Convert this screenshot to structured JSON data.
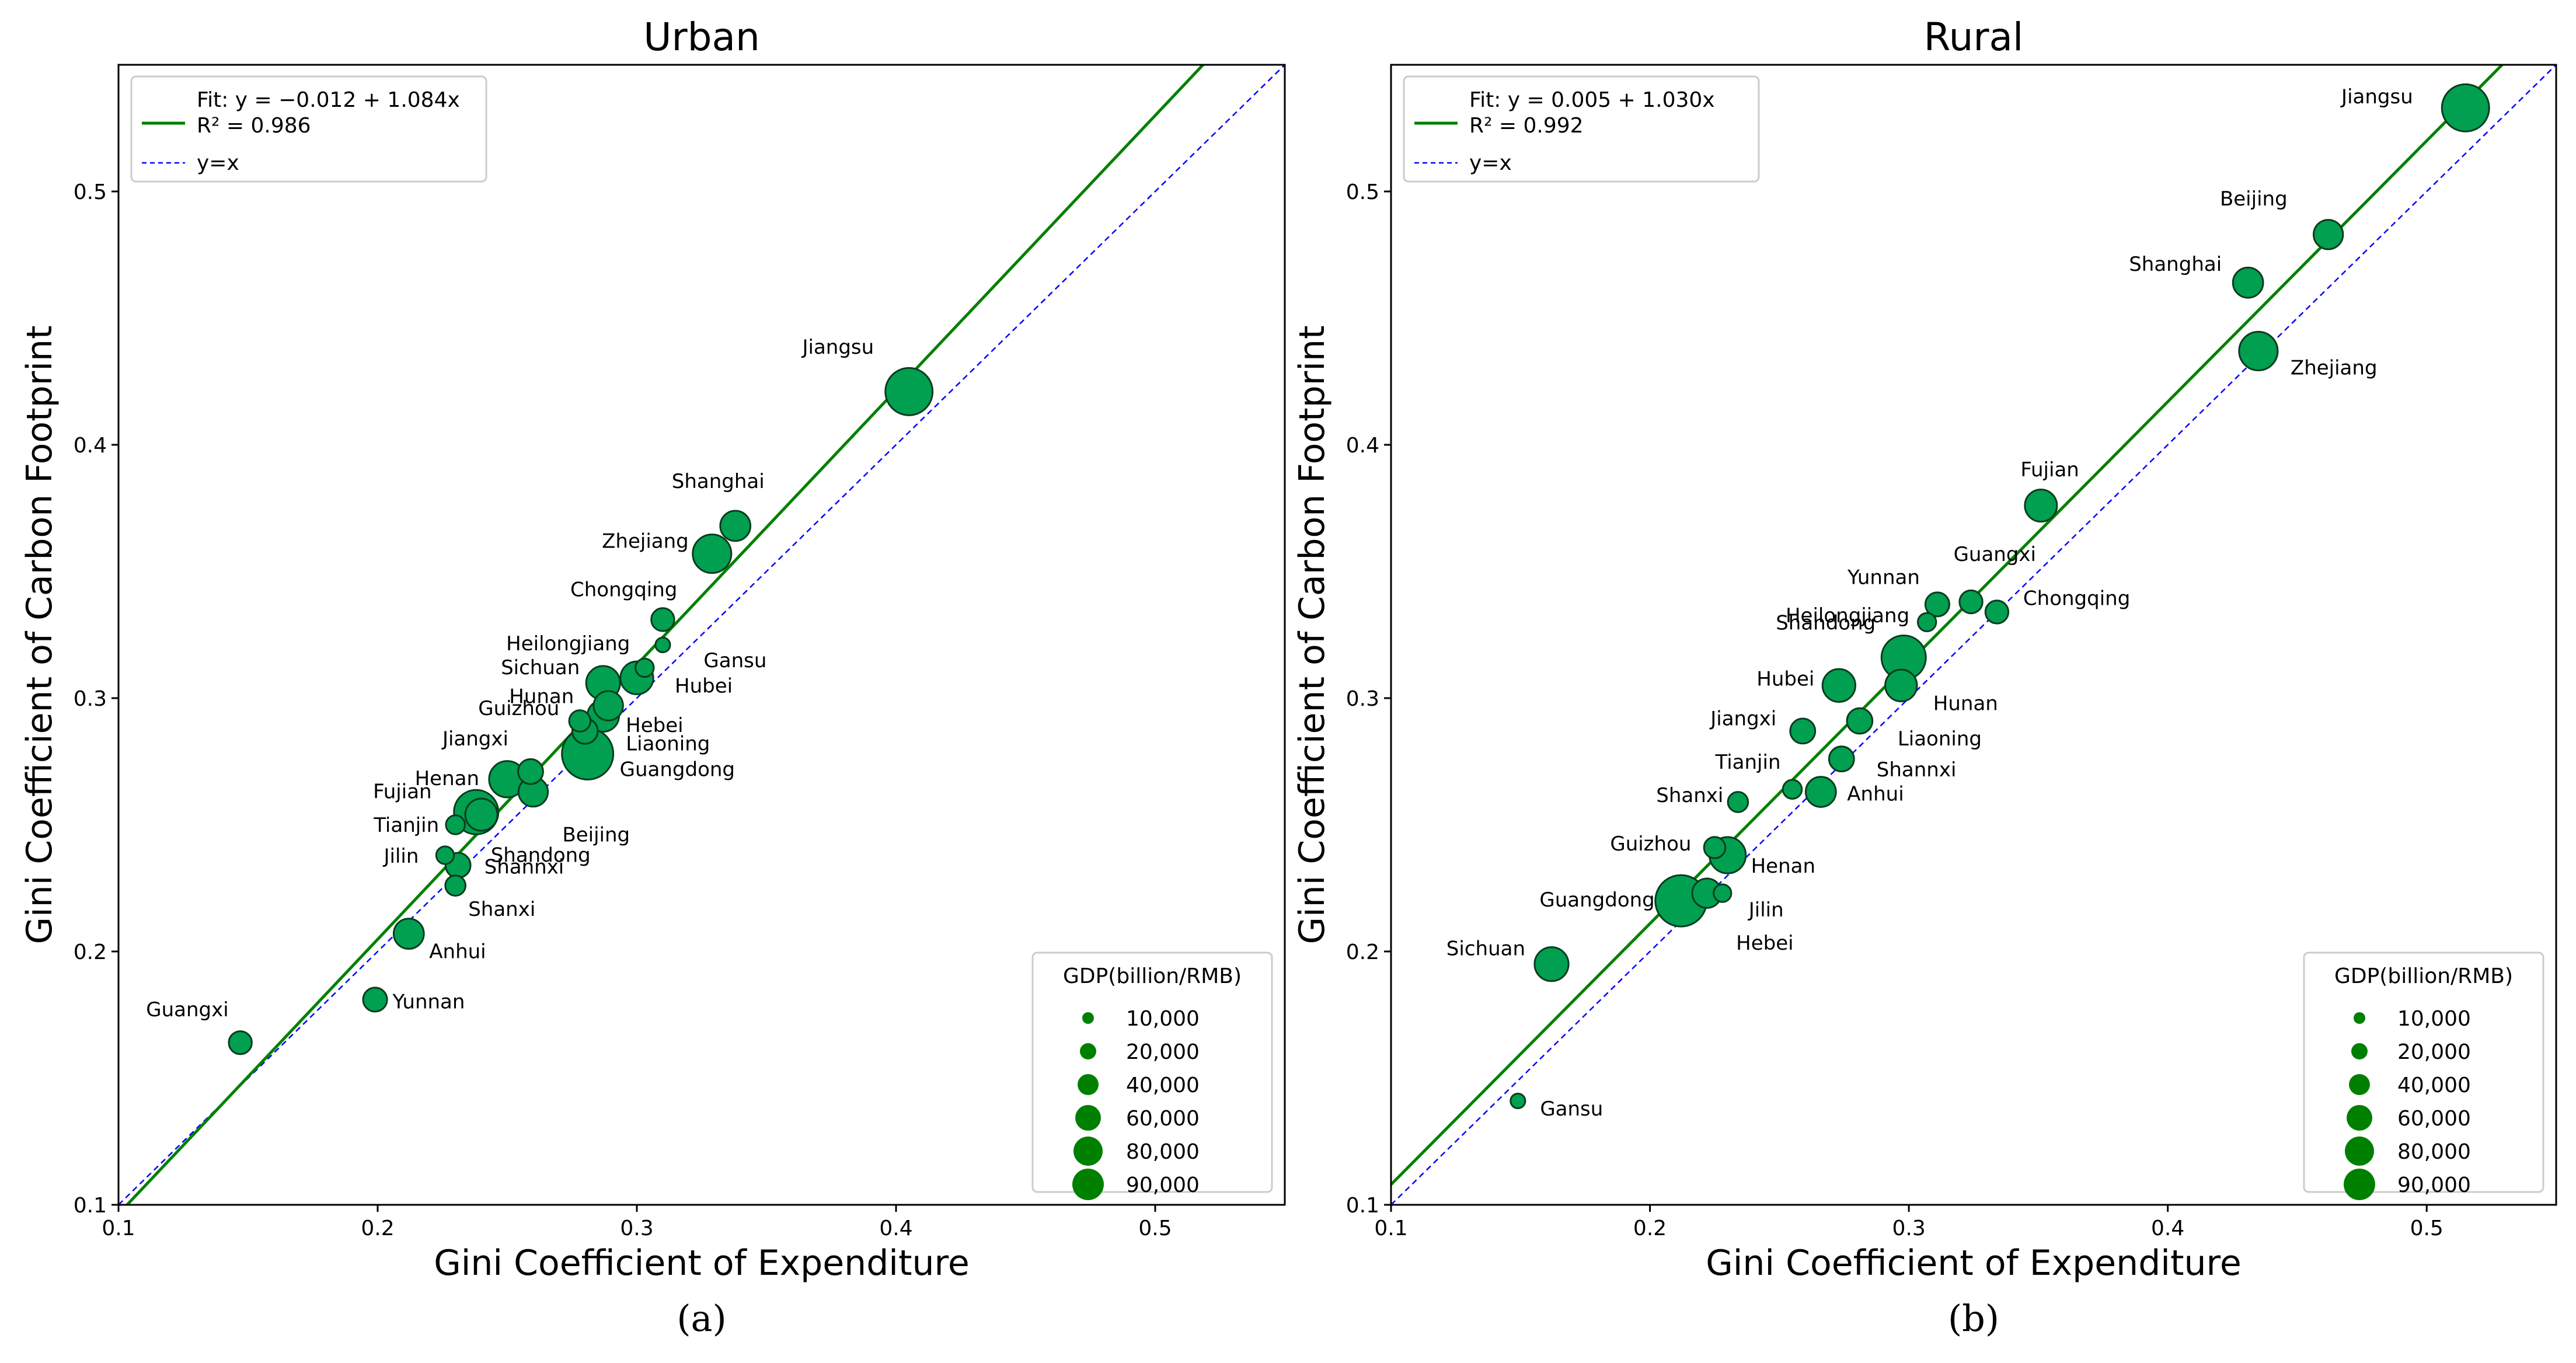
{
  "chart_data": [
    {
      "type": "scatter",
      "panel_label": "(a)",
      "title": "Urban",
      "xlabel": "Gini Coefficient of Expenditure",
      "ylabel": "Gini Coefficient of Carbon Footprint",
      "xlim": [
        0.1,
        0.55
      ],
      "ylim": [
        0.1,
        0.55
      ],
      "xticks": [
        0.1,
        0.2,
        0.3,
        0.4,
        0.5
      ],
      "yticks": [
        0.1,
        0.2,
        0.3,
        0.4,
        0.5
      ],
      "grid": false,
      "fit": {
        "intercept": -0.012,
        "slope": 1.084,
        "label": "Fit: y = −0.012 + 1.084x",
        "r2_label": "R² = 0.986",
        "color": "#008000"
      },
      "identity": {
        "label": "y=x",
        "color": "#0000ff"
      },
      "legend_position": "top-left",
      "points": [
        {
          "name": "Jiangsu",
          "x": 0.405,
          "y": 0.421,
          "gdp": 93000
        },
        {
          "name": "Shanghai",
          "x": 0.338,
          "y": 0.368,
          "gdp": 38000
        },
        {
          "name": "Zhejiang",
          "x": 0.329,
          "y": 0.357,
          "gdp": 62000
        },
        {
          "name": "Chongqing",
          "x": 0.31,
          "y": 0.331,
          "gdp": 22000
        },
        {
          "name": "Gansu",
          "x": 0.31,
          "y": 0.321,
          "gdp": 9000
        },
        {
          "name": "Heilongjiang",
          "x": 0.303,
          "y": 0.312,
          "gdp": 14000
        },
        {
          "name": "Sichuan",
          "x": 0.287,
          "y": 0.306,
          "gdp": 48000
        },
        {
          "name": "Hubei",
          "x": 0.3,
          "y": 0.308,
          "gdp": 45000
        },
        {
          "name": "Hunan",
          "x": 0.287,
          "y": 0.293,
          "gdp": 42000
        },
        {
          "name": "Hebei",
          "x": 0.289,
          "y": 0.297,
          "gdp": 36000
        },
        {
          "name": "Guizhou",
          "x": 0.278,
          "y": 0.291,
          "gdp": 19000
        },
        {
          "name": "Liaoning",
          "x": 0.28,
          "y": 0.287,
          "gdp": 27000
        },
        {
          "name": "Guangdong",
          "x": 0.281,
          "y": 0.278,
          "gdp": 110000
        },
        {
          "name": "Jiangxi",
          "x": 0.259,
          "y": 0.271,
          "gdp": 26000
        },
        {
          "name": "Henan",
          "x": 0.25,
          "y": 0.268,
          "gdp": 55000
        },
        {
          "name": "Beijing",
          "x": 0.26,
          "y": 0.263,
          "gdp": 36000
        },
        {
          "name": "Shandong",
          "x": 0.238,
          "y": 0.255,
          "gdp": 82000
        },
        {
          "name": "Fujian",
          "x": 0.24,
          "y": 0.254,
          "gdp": 43000
        },
        {
          "name": "Tianjin",
          "x": 0.23,
          "y": 0.25,
          "gdp": 15000
        },
        {
          "name": "Jilin",
          "x": 0.226,
          "y": 0.238,
          "gdp": 13000
        },
        {
          "name": "Shannxi",
          "x": 0.231,
          "y": 0.234,
          "gdp": 26000
        },
        {
          "name": "Shanxi",
          "x": 0.23,
          "y": 0.226,
          "gdp": 17000
        },
        {
          "name": "Anhui",
          "x": 0.212,
          "y": 0.207,
          "gdp": 38000
        },
        {
          "name": "Yunnan",
          "x": 0.199,
          "y": 0.181,
          "gdp": 24000
        },
        {
          "name": "Guangxi",
          "x": 0.147,
          "y": 0.164,
          "gdp": 22000
        }
      ],
      "size_legend": {
        "title": "GDP(billion/RMB)",
        "entries": [
          {
            "label": "10,000",
            "value": 10000
          },
          {
            "label": "20,000",
            "value": 20000
          },
          {
            "label": "40,000",
            "value": 40000
          },
          {
            "label": "60,000",
            "value": 60000
          },
          {
            "label": "80,000",
            "value": 80000
          },
          {
            "label": "90,000",
            "value": 90000
          }
        ],
        "position": "bottom-right"
      },
      "marker_color": "#00a050"
    },
    {
      "type": "scatter",
      "panel_label": "(b)",
      "title": "Rural",
      "xlabel": "Gini Coefficient of Expenditure",
      "ylabel": "Gini Coefficient of Carbon Footprint",
      "xlim": [
        0.1,
        0.55
      ],
      "ylim": [
        0.1,
        0.55
      ],
      "xticks": [
        0.1,
        0.2,
        0.3,
        0.4,
        0.5
      ],
      "yticks": [
        0.1,
        0.2,
        0.3,
        0.4,
        0.5
      ],
      "grid": false,
      "fit": {
        "intercept": 0.005,
        "slope": 1.03,
        "label": "Fit: y = 0.005 + 1.030x",
        "r2_label": "R² = 0.992",
        "color": "#008000"
      },
      "identity": {
        "label": "y=x",
        "color": "#0000ff"
      },
      "legend_position": "top-left",
      "points": [
        {
          "name": "Jiangsu",
          "x": 0.515,
          "y": 0.533,
          "gdp": 93000
        },
        {
          "name": "Beijing",
          "x": 0.462,
          "y": 0.483,
          "gdp": 36000
        },
        {
          "name": "Shanghai",
          "x": 0.431,
          "y": 0.464,
          "gdp": 38000
        },
        {
          "name": "Zhejiang",
          "x": 0.435,
          "y": 0.437,
          "gdp": 62000
        },
        {
          "name": "Fujian",
          "x": 0.351,
          "y": 0.376,
          "gdp": 43000
        },
        {
          "name": "Guangxi",
          "x": 0.324,
          "y": 0.338,
          "gdp": 22000
        },
        {
          "name": "Yunnan",
          "x": 0.311,
          "y": 0.337,
          "gdp": 24000
        },
        {
          "name": "Chongqing",
          "x": 0.334,
          "y": 0.334,
          "gdp": 22000
        },
        {
          "name": "Heilongjiang",
          "x": 0.307,
          "y": 0.33,
          "gdp": 14000
        },
        {
          "name": "Shandong",
          "x": 0.298,
          "y": 0.316,
          "gdp": 82000
        },
        {
          "name": "Hubei",
          "x": 0.273,
          "y": 0.305,
          "gdp": 45000
        },
        {
          "name": "Hunan",
          "x": 0.297,
          "y": 0.305,
          "gdp": 42000
        },
        {
          "name": "Liaoning",
          "x": 0.281,
          "y": 0.291,
          "gdp": 27000
        },
        {
          "name": "Jiangxi",
          "x": 0.259,
          "y": 0.287,
          "gdp": 26000
        },
        {
          "name": "Shannxi",
          "x": 0.274,
          "y": 0.276,
          "gdp": 26000
        },
        {
          "name": "Tianjin",
          "x": 0.255,
          "y": 0.264,
          "gdp": 15000
        },
        {
          "name": "Anhui",
          "x": 0.266,
          "y": 0.263,
          "gdp": 38000
        },
        {
          "name": "Shanxi",
          "x": 0.234,
          "y": 0.259,
          "gdp": 17000
        },
        {
          "name": "Guizhou",
          "x": 0.225,
          "y": 0.241,
          "gdp": 19000
        },
        {
          "name": "Henan",
          "x": 0.23,
          "y": 0.238,
          "gdp": 55000
        },
        {
          "name": "Guangdong",
          "x": 0.212,
          "y": 0.22,
          "gdp": 110000
        },
        {
          "name": "Jilin",
          "x": 0.228,
          "y": 0.223,
          "gdp": 13000
        },
        {
          "name": "Hebei",
          "x": 0.222,
          "y": 0.223,
          "gdp": 36000
        },
        {
          "name": "Sichuan",
          "x": 0.162,
          "y": 0.195,
          "gdp": 48000
        },
        {
          "name": "Gansu",
          "x": 0.149,
          "y": 0.141,
          "gdp": 9000
        }
      ],
      "size_legend": {
        "title": "GDP(billion/RMB)",
        "entries": [
          {
            "label": "10,000",
            "value": 10000
          },
          {
            "label": "20,000",
            "value": 20000
          },
          {
            "label": "40,000",
            "value": 40000
          },
          {
            "label": "60,000",
            "value": 60000
          },
          {
            "label": "80,000",
            "value": 80000
          },
          {
            "label": "90,000",
            "value": 90000
          }
        ],
        "position": "bottom-right"
      },
      "marker_color": "#00a050"
    }
  ]
}
